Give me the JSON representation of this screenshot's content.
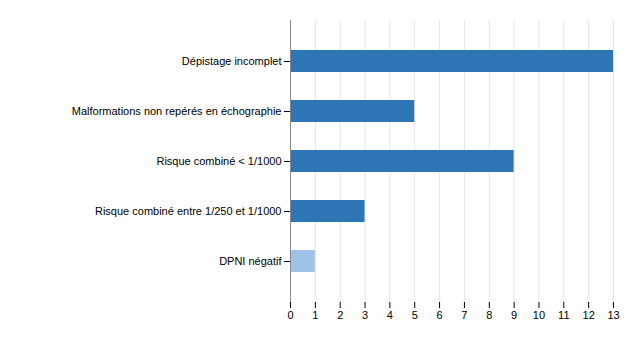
{
  "chart_data": {
    "type": "bar",
    "orientation": "horizontal",
    "categories": [
      "DPNI négatif",
      "Risque combiné entre 1/250 et 1/1000",
      "Risque combiné < 1/1000",
      "Malformations non repérés en échographie",
      "Dépistage incomplet"
    ],
    "values": [
      1,
      3,
      9,
      5,
      13
    ],
    "colors": [
      "#9dc3e6",
      "#2e75b6",
      "#2e75b6",
      "#2e75b6",
      "#2e75b6"
    ],
    "xlim": [
      0,
      13
    ],
    "xticks": [
      0,
      1,
      2,
      3,
      4,
      5,
      6,
      7,
      8,
      9,
      10,
      11,
      12,
      13
    ],
    "grid": true
  }
}
